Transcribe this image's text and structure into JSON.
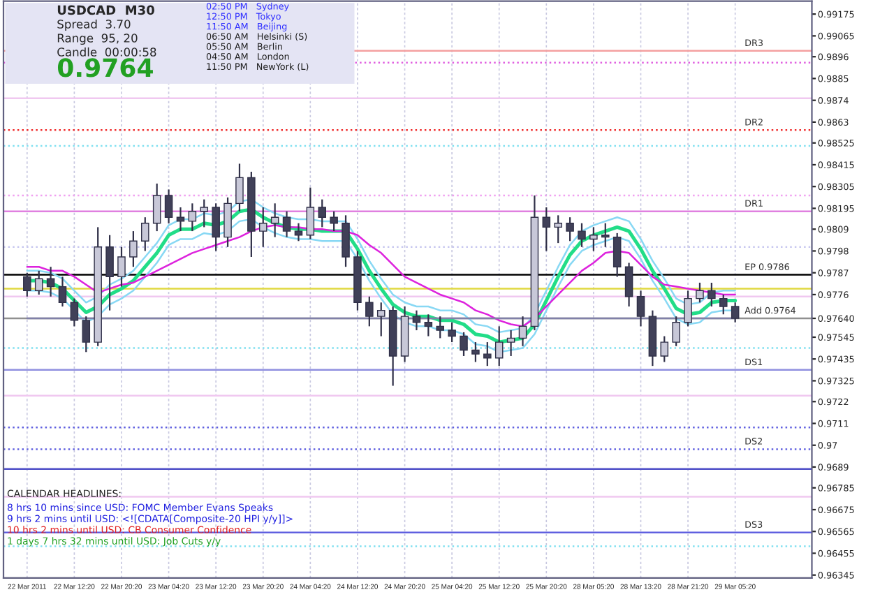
{
  "chart_data": {
    "type": "candlestick",
    "categories": [
      "22 Mar 2011",
      null,
      null,
      null,
      "22 Mar 12:20",
      null,
      null,
      null,
      "22 Mar 20:20",
      null,
      null,
      null,
      "23 Mar 04:20",
      null,
      null,
      null,
      "23 Mar 12:20",
      null,
      null,
      null,
      "23 Mar 20:20",
      null,
      null,
      null,
      "24 Mar 04:20",
      null,
      null,
      null,
      "24 Mar 12:20",
      null,
      null,
      null,
      "24 Mar 20:20",
      null,
      null,
      null,
      "25 Mar 04:20",
      null,
      null,
      null,
      "25 Mar 12:20",
      null,
      null,
      null,
      "25 Mar 20:20",
      null,
      null,
      null,
      "28 Mar 05:20",
      null,
      null,
      null,
      "28 Mar 13:20",
      null,
      null,
      null,
      "28 Mar 21:20",
      null,
      null,
      null,
      "29 Mar 05:20"
    ],
    "ohlc": [
      [
        0.9785,
        0.9787,
        0.9775,
        0.9778
      ],
      [
        0.9778,
        0.9788,
        0.9776,
        0.9784
      ],
      [
        0.9784,
        0.979,
        0.9775,
        0.978
      ],
      [
        0.978,
        0.9785,
        0.977,
        0.9772
      ],
      [
        0.9772,
        0.9774,
        0.976,
        0.9763
      ],
      [
        0.9763,
        0.9765,
        0.9747,
        0.9752
      ],
      [
        0.9752,
        0.981,
        0.975,
        0.98
      ],
      [
        0.98,
        0.9806,
        0.9768,
        0.9785
      ],
      [
        0.9785,
        0.98,
        0.978,
        0.9795
      ],
      [
        0.9795,
        0.9808,
        0.979,
        0.9803
      ],
      [
        0.9803,
        0.9815,
        0.9798,
        0.9812
      ],
      [
        0.9812,
        0.9832,
        0.9808,
        0.9826
      ],
      [
        0.9826,
        0.9829,
        0.9812,
        0.9815
      ],
      [
        0.9815,
        0.982,
        0.9808,
        0.9813
      ],
      [
        0.9813,
        0.9822,
        0.9808,
        0.9818
      ],
      [
        0.9818,
        0.9824,
        0.981,
        0.982
      ],
      [
        0.982,
        0.9822,
        0.9798,
        0.9805
      ],
      [
        0.9805,
        0.9825,
        0.98,
        0.9822
      ],
      [
        0.9822,
        0.9842,
        0.9818,
        0.9835
      ],
      [
        0.9835,
        0.9838,
        0.9795,
        0.9808
      ],
      [
        0.9808,
        0.982,
        0.98,
        0.9812
      ],
      [
        0.9812,
        0.9822,
        0.9805,
        0.9815
      ],
      [
        0.9815,
        0.9818,
        0.9805,
        0.9808
      ],
      [
        0.9808,
        0.9812,
        0.9803,
        0.9806
      ],
      [
        0.9806,
        0.983,
        0.9804,
        0.982
      ],
      [
        0.982,
        0.9824,
        0.981,
        0.9815
      ],
      [
        0.9815,
        0.9818,
        0.9808,
        0.9812
      ],
      [
        0.9812,
        0.9816,
        0.979,
        0.9795
      ],
      [
        0.9795,
        0.9798,
        0.9768,
        0.9772
      ],
      [
        0.9772,
        0.9775,
        0.976,
        0.9765
      ],
      [
        0.9765,
        0.9772,
        0.9755,
        0.9768
      ],
      [
        0.9768,
        0.977,
        0.973,
        0.9745
      ],
      [
        0.9745,
        0.977,
        0.9742,
        0.9765
      ],
      [
        0.9765,
        0.9768,
        0.9758,
        0.9762
      ],
      [
        0.9762,
        0.9766,
        0.9755,
        0.976
      ],
      [
        0.976,
        0.9765,
        0.9754,
        0.9758
      ],
      [
        0.9758,
        0.9762,
        0.9752,
        0.9755
      ],
      [
        0.9755,
        0.9757,
        0.9745,
        0.9748
      ],
      [
        0.9748,
        0.9752,
        0.9742,
        0.9746
      ],
      [
        0.9746,
        0.9752,
        0.974,
        0.9744
      ],
      [
        0.9744,
        0.976,
        0.974,
        0.9752
      ],
      [
        0.9752,
        0.9758,
        0.9745,
        0.9754
      ],
      [
        0.9754,
        0.9765,
        0.975,
        0.976
      ],
      [
        0.976,
        0.9826,
        0.9758,
        0.9815
      ],
      [
        0.9815,
        0.982,
        0.9798,
        0.981
      ],
      [
        0.981,
        0.9816,
        0.9802,
        0.9812
      ],
      [
        0.9812,
        0.9815,
        0.9803,
        0.9808
      ],
      [
        0.9808,
        0.9812,
        0.98,
        0.9804
      ],
      [
        0.9804,
        0.981,
        0.9798,
        0.9806
      ],
      [
        0.9806,
        0.9812,
        0.98,
        0.9805
      ],
      [
        0.9805,
        0.9807,
        0.9785,
        0.979
      ],
      [
        0.979,
        0.9792,
        0.977,
        0.9775
      ],
      [
        0.9775,
        0.9778,
        0.976,
        0.9765
      ],
      [
        0.9765,
        0.9768,
        0.974,
        0.9745
      ],
      [
        0.9745,
        0.9755,
        0.9742,
        0.9752
      ],
      [
        0.9752,
        0.9765,
        0.975,
        0.9762
      ],
      [
        0.9762,
        0.9778,
        0.976,
        0.9774
      ],
      [
        0.9774,
        0.9782,
        0.9772,
        0.9778
      ],
      [
        0.9778,
        0.9782,
        0.977,
        0.9774
      ],
      [
        0.9774,
        0.9776,
        0.9766,
        0.977
      ],
      [
        0.977,
        0.9772,
        0.9762,
        0.9764
      ]
    ],
    "series": [
      {
        "type": "line",
        "color": "#88d8f4",
        "values": [
          0.9788,
          0.9788,
          0.9787,
          0.9784,
          0.9778,
          0.9772,
          0.9775,
          0.9781,
          0.9784,
          0.9788,
          0.9795,
          0.9802,
          0.9811,
          0.9814,
          0.9814,
          0.9817,
          0.9816,
          0.9818,
          0.9823,
          0.9824,
          0.982,
          0.9817,
          0.9815,
          0.9814,
          0.9814,
          0.9813,
          0.9813,
          0.9813,
          0.9804,
          0.9793,
          0.9784,
          0.9776,
          0.9772,
          0.977,
          0.977,
          0.9768,
          0.9768,
          0.9766,
          0.9761,
          0.976,
          0.9757,
          0.9758,
          0.9759,
          0.9766,
          0.9778,
          0.979,
          0.9801,
          0.9808,
          0.9811,
          0.9813,
          0.9815,
          0.9813,
          0.9804,
          0.9793,
          0.9784,
          0.9774,
          0.9771,
          0.9772,
          0.9777,
          0.9778,
          0.9778
        ]
      },
      {
        "type": "line",
        "color": "#88d8f4",
        "values": [
          0.9778,
          0.9778,
          0.9777,
          0.9774,
          0.9768,
          0.9762,
          0.9765,
          0.9771,
          0.9774,
          0.9778,
          0.9785,
          0.9792,
          0.9801,
          0.9804,
          0.9804,
          0.9807,
          0.9806,
          0.9808,
          0.9813,
          0.9814,
          0.981,
          0.9807,
          0.9805,
          0.9804,
          0.9804,
          0.9803,
          0.9803,
          0.9803,
          0.9794,
          0.9783,
          0.9774,
          0.9766,
          0.9762,
          0.976,
          0.976,
          0.9758,
          0.9758,
          0.9756,
          0.9751,
          0.975,
          0.9747,
          0.9748,
          0.9749,
          0.9756,
          0.9768,
          0.978,
          0.9791,
          0.9798,
          0.9801,
          0.9803,
          0.9805,
          0.9803,
          0.9794,
          0.9783,
          0.9774,
          0.9764,
          0.9761,
          0.9762,
          0.9767,
          0.9768,
          0.9768
        ]
      },
      {
        "type": "line",
        "color": "#22dd88",
        "values": [
          0.9783,
          0.9783,
          0.9782,
          0.9779,
          0.9773,
          0.9767,
          0.977,
          0.9776,
          0.9779,
          0.9783,
          0.979,
          0.9797,
          0.9806,
          0.9809,
          0.9809,
          0.9812,
          0.9811,
          0.9813,
          0.9818,
          0.9819,
          0.9815,
          0.9812,
          0.981,
          0.9809,
          0.9809,
          0.9808,
          0.9808,
          0.9808,
          0.9799,
          0.9788,
          0.9779,
          0.9771,
          0.9767,
          0.9765,
          0.9765,
          0.9763,
          0.9763,
          0.9761,
          0.9756,
          0.9755,
          0.9752,
          0.9753,
          0.9754,
          0.9761,
          0.9773,
          0.9785,
          0.9796,
          0.9803,
          0.9806,
          0.9808,
          0.981,
          0.9808,
          0.9799,
          0.9788,
          0.9779,
          0.9769,
          0.9766,
          0.9767,
          0.9772,
          0.9773,
          0.9773
        ]
      },
      {
        "type": "line",
        "color": "#dd22dd",
        "values": [
          0.979,
          0.979,
          0.9788,
          0.9788,
          0.9785,
          0.9781,
          0.9777,
          0.9779,
          0.9781,
          0.9782,
          0.9785,
          0.9788,
          0.9791,
          0.9794,
          0.9797,
          0.9799,
          0.9801,
          0.9803,
          0.9805,
          0.9808,
          0.981,
          0.9811,
          0.981,
          0.981,
          0.9809,
          0.9809,
          0.9808,
          0.9808,
          0.9806,
          0.9801,
          0.9797,
          0.9791,
          0.9785,
          0.9782,
          0.9779,
          0.9776,
          0.9774,
          0.9772,
          0.9768,
          0.9766,
          0.9763,
          0.9761,
          0.976,
          0.9764,
          0.977,
          0.9776,
          0.9782,
          0.9788,
          0.9792,
          0.9797,
          0.9798,
          0.9797,
          0.9791,
          0.9785,
          0.9781,
          0.978,
          0.9779,
          0.9778,
          0.9777,
          0.9776,
          0.9776
        ]
      },
      {
        "type": "line",
        "color": "#8080a8",
        "values": [
          0.9764,
          0.9764,
          0.9764,
          0.9764,
          0.9764,
          0.9764,
          0.9764,
          0.9764,
          0.9764,
          0.9764,
          0.9764,
          0.9764,
          0.9764,
          0.9764,
          0.9764,
          0.9764,
          0.9764,
          0.9764,
          0.9764,
          0.9764,
          0.9764,
          0.9764,
          0.9764,
          0.9764,
          0.9764,
          0.9764,
          0.9764,
          0.9764,
          0.9764,
          0.9764,
          0.9764,
          0.9764,
          0.9764,
          0.9764,
          0.9764,
          0.9764,
          0.9764,
          0.9764,
          0.9764,
          0.9764,
          0.9764,
          0.9764,
          0.9764,
          0.9764,
          0.9764,
          0.9764,
          0.9764,
          0.9764,
          0.9764,
          0.9764,
          0.9764,
          0.9764,
          0.9764,
          0.9764,
          0.9764,
          0.9764,
          0.9764,
          0.9764,
          0.9764,
          0.9764,
          0.9764
        ]
      }
    ],
    "ylim": [
      0.9633,
      0.9924
    ],
    "yticks": [
      0.99175,
      0.99065,
      0.9896,
      0.9885,
      0.9874,
      0.9863,
      0.98525,
      0.98415,
      0.98305,
      0.98195,
      0.9809,
      0.9798,
      0.9787,
      0.9776,
      {
        "value": 0.9764,
        "label": "0.97640"
      },
      0.97545,
      0.97435,
      0.97325,
      0.9722,
      0.9711,
      0.97,
      0.9689,
      0.96785,
      0.96675,
      0.96565,
      0.96455,
      0.96345
    ],
    "ref_lines": [
      {
        "axis": "y",
        "value": 0.9899,
        "label": "DR3",
        "color": "#f4a0a0",
        "line_style": "solid"
      },
      {
        "axis": "y",
        "value": 0.9893,
        "label": null,
        "color": "#e060e0",
        "line_style": "dotted"
      },
      {
        "axis": "y",
        "value": 0.9875,
        "label": null,
        "color": "#f0c8f0",
        "line_style": "solid"
      },
      {
        "axis": "y",
        "value": 0.9859,
        "label": "DR2",
        "color": "#f03030",
        "line_style": "dotted"
      },
      {
        "axis": "y",
        "value": 0.9851,
        "label": null,
        "color": "#80e0f0",
        "line_style": "dotted"
      },
      {
        "axis": "y",
        "value": 0.9826,
        "label": null,
        "color": "#f0a0f0",
        "line_style": "dotted"
      },
      {
        "axis": "y",
        "value": 0.9818,
        "label": "DR1",
        "color": "#e080e0",
        "line_style": "solid"
      },
      {
        "axis": "y",
        "value": 0.98,
        "label": null,
        "color": "#c8c8f0",
        "line_style": "dotted"
      },
      {
        "axis": "y",
        "value": 0.9786,
        "label": "EP 0.9786",
        "color": "#000000",
        "line_style": "solid"
      },
      {
        "axis": "y",
        "value": 0.9779,
        "label": null,
        "color": "#e0d840",
        "line_style": "solid"
      },
      {
        "axis": "y",
        "value": 0.9775,
        "label": null,
        "color": "#f0c8f0",
        "line_style": "solid"
      },
      {
        "axis": "y",
        "value": 0.9764,
        "label": "Add 0.9764",
        "color": "#909090",
        "line_style": "solid"
      },
      {
        "axis": "y",
        "value": 0.9749,
        "label": null,
        "color": "#80e0f0",
        "line_style": "dotted"
      },
      {
        "axis": "y",
        "value": 0.9738,
        "label": "DS1",
        "color": "#9090e0",
        "line_style": "solid"
      },
      {
        "axis": "y",
        "value": 0.9725,
        "label": null,
        "color": "#f0c8f0",
        "line_style": "solid"
      },
      {
        "axis": "y",
        "value": 0.9709,
        "label": null,
        "color": "#6060e0",
        "line_style": "dotted"
      },
      {
        "axis": "y",
        "value": 0.9698,
        "label": "DS2",
        "color": "#6060e0",
        "line_style": "dotted"
      },
      {
        "axis": "y",
        "value": 0.9688,
        "label": null,
        "color": "#5050c8",
        "line_style": "solid"
      },
      {
        "axis": "y",
        "value": 0.9674,
        "label": null,
        "color": "#f0c8f0",
        "line_style": "solid"
      },
      {
        "axis": "y",
        "value": 0.9656,
        "label": "DS3",
        "color": "#6060e0",
        "line_style": "solid"
      },
      {
        "axis": "y",
        "value": 0.9649,
        "label": null,
        "color": "#80e0f0",
        "line_style": "dotted"
      }
    ],
    "annotations": [
      "USDCAD  M30",
      "Spread  3.70",
      "Range  95, 20",
      "Candle  00:00:58",
      "0.9764",
      "02:50 PM   Sydney",
      "12:50 PM   Tokyo",
      "11:50 AM   Beijing",
      "06:50 AM   Helsinki (S)",
      "05:50 AM   Berlin",
      "04:50 AM   London",
      "11:50 PM   NewYork (L)",
      "CALENDAR HEADLINES:",
      "8 hrs 10 mins since USD: FOMC Member Evans Speaks",
      "9 hrs 2 mins until USD: <![CDATA[Composite-20 HPI y/y]]>",
      "10 hrs 2 mins until USD: CB Consumer Confidence",
      "1 days 7 hrs 32 mins until USD: Job Cuts y/y"
    ],
    "grid": "x",
    "legend": false
  }
}
